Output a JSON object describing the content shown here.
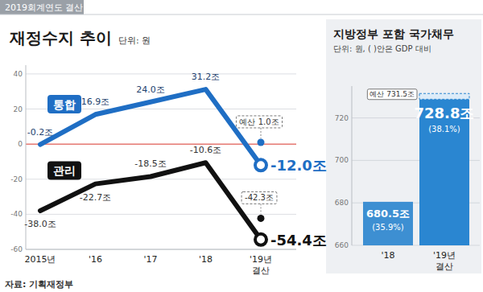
{
  "header": "2019회계연도 결산",
  "source": "자료: 기획재정부",
  "chart_data": [
    {
      "type": "line",
      "title": "재정수지 추이",
      "subtitle": "단위: 원",
      "categories": [
        "2015년",
        "'16",
        "'17",
        "'18",
        "'19년 결산"
      ],
      "series": [
        {
          "name": "통합",
          "color": "#1f6ec4",
          "values": [
            -0.2,
            16.9,
            24.0,
            31.2,
            -12.0
          ],
          "value_labels": [
            "-0.2조",
            "16.9조",
            "24.0조",
            "31.2조",
            "-12.0조"
          ]
        },
        {
          "name": "관리",
          "color": "#111111",
          "values": [
            -38.0,
            -22.7,
            -18.5,
            -10.6,
            -54.4
          ],
          "value_labels": [
            "-38.0조",
            "-22.7조",
            "-18.5조",
            "-10.6조",
            "-54.4조"
          ]
        }
      ],
      "ylim": [
        -60,
        45
      ],
      "yticks": [
        -60,
        -40,
        -20,
        0,
        20,
        40
      ],
      "grid": true,
      "data_labels": true,
      "annotations": [
        {
          "label": "예산 1.0조",
          "category": "'19년 결산",
          "series": "통합",
          "value": 1.0
        },
        {
          "label": "-42.3조",
          "category": "'19년 결산",
          "series": "관리",
          "value": -42.3
        }
      ]
    },
    {
      "type": "bar",
      "title": "지방정부 포함 국가채무",
      "subtitle": "단위: 원, ( )안은 GDP 대비",
      "categories": [
        "'18",
        "'19년 결산"
      ],
      "values": [
        680.5,
        728.8
      ],
      "value_labels": [
        "680.5조",
        "728.8조"
      ],
      "gdp_ratio_labels": [
        "(35.9%)",
        "(38.1%)"
      ],
      "colors": [
        "#3d8fd2",
        "#2a86d1"
      ],
      "ylim": [
        660,
        735
      ],
      "yticks": [
        660,
        680,
        700,
        720
      ],
      "grid": true,
      "data_labels": true,
      "annotations": [
        {
          "label": "예산 731.5조",
          "category": "'19년 결산",
          "value": 731.5
        }
      ]
    }
  ]
}
